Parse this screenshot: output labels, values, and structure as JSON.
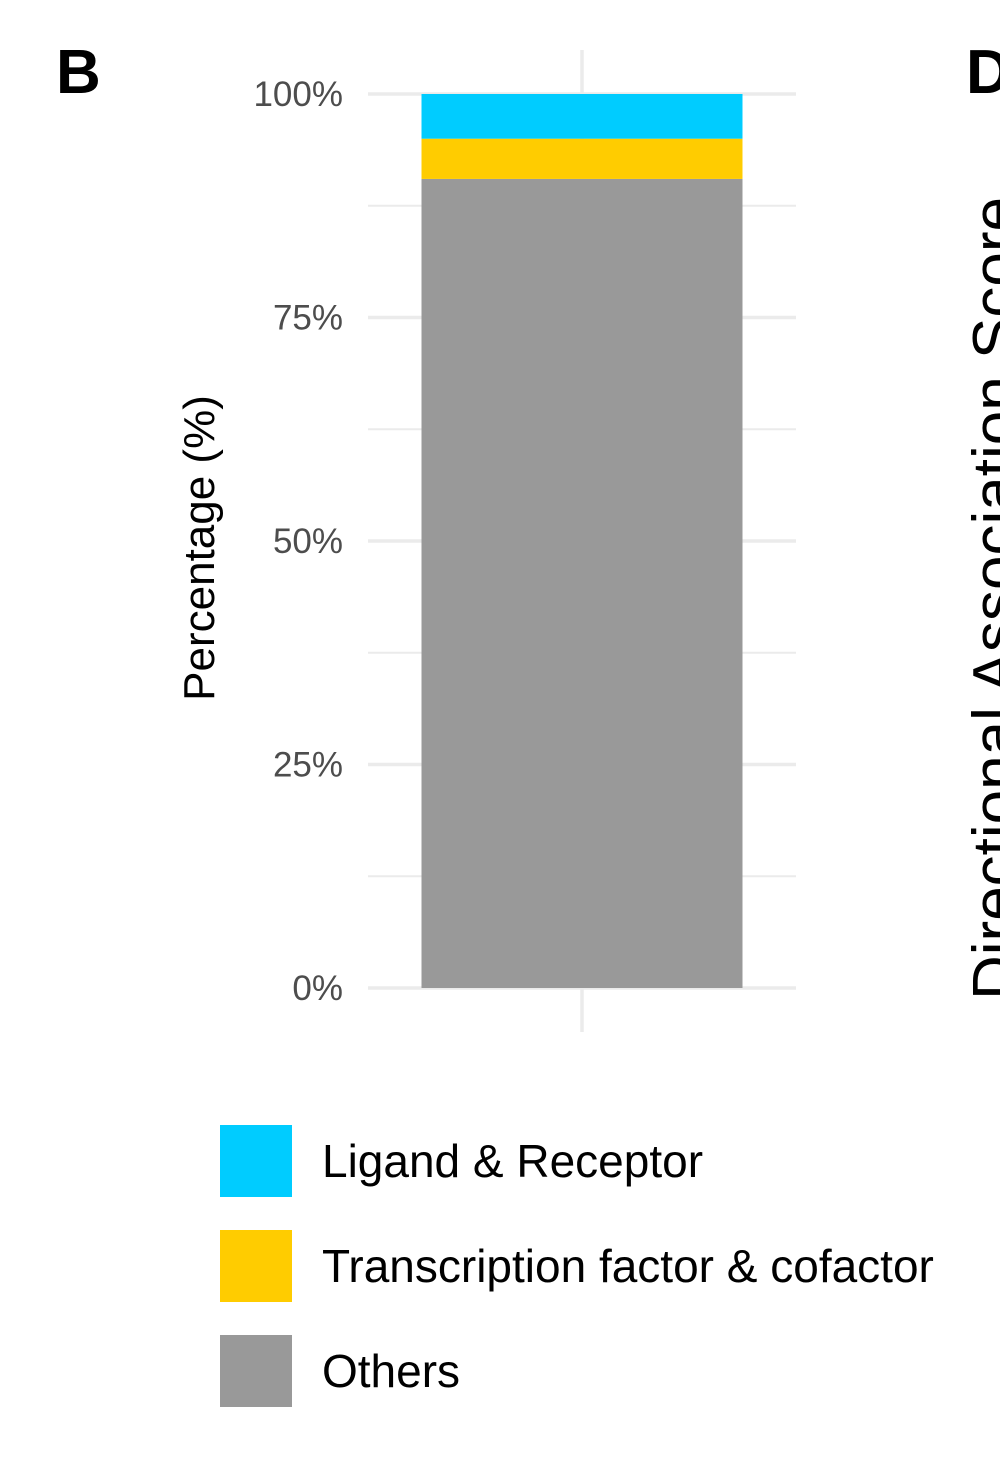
{
  "chart_data": {
    "type": "stacked_bar",
    "panel_label": "B",
    "neighbor_panel_label": "D",
    "neighbor_axis_label": "Directional Association Score",
    "y_label": "Percentage (%)",
    "categories": [
      null
    ],
    "series": [
      {
        "name": "Ligand & Receptor",
        "color": "#00ccff",
        "values": [
          5.0
        ]
      },
      {
        "name": "Transcription factor & cofactor",
        "color": "#ffcc00",
        "values": [
          4.5
        ]
      },
      {
        "name": "Others",
        "color": "#999999",
        "values": [
          90.5
        ]
      }
    ],
    "ylim": [
      0,
      100
    ],
    "yticks": [
      {
        "value": 0,
        "label": "0%"
      },
      {
        "value": 25,
        "label": "25%"
      },
      {
        "value": 50,
        "label": "50%"
      },
      {
        "value": 75,
        "label": "75%"
      },
      {
        "value": 100,
        "label": "100%"
      }
    ],
    "yticks_minor": [
      12.5,
      37.5,
      62.5,
      87.5
    ],
    "grid": true,
    "legend_position": "bottom"
  }
}
